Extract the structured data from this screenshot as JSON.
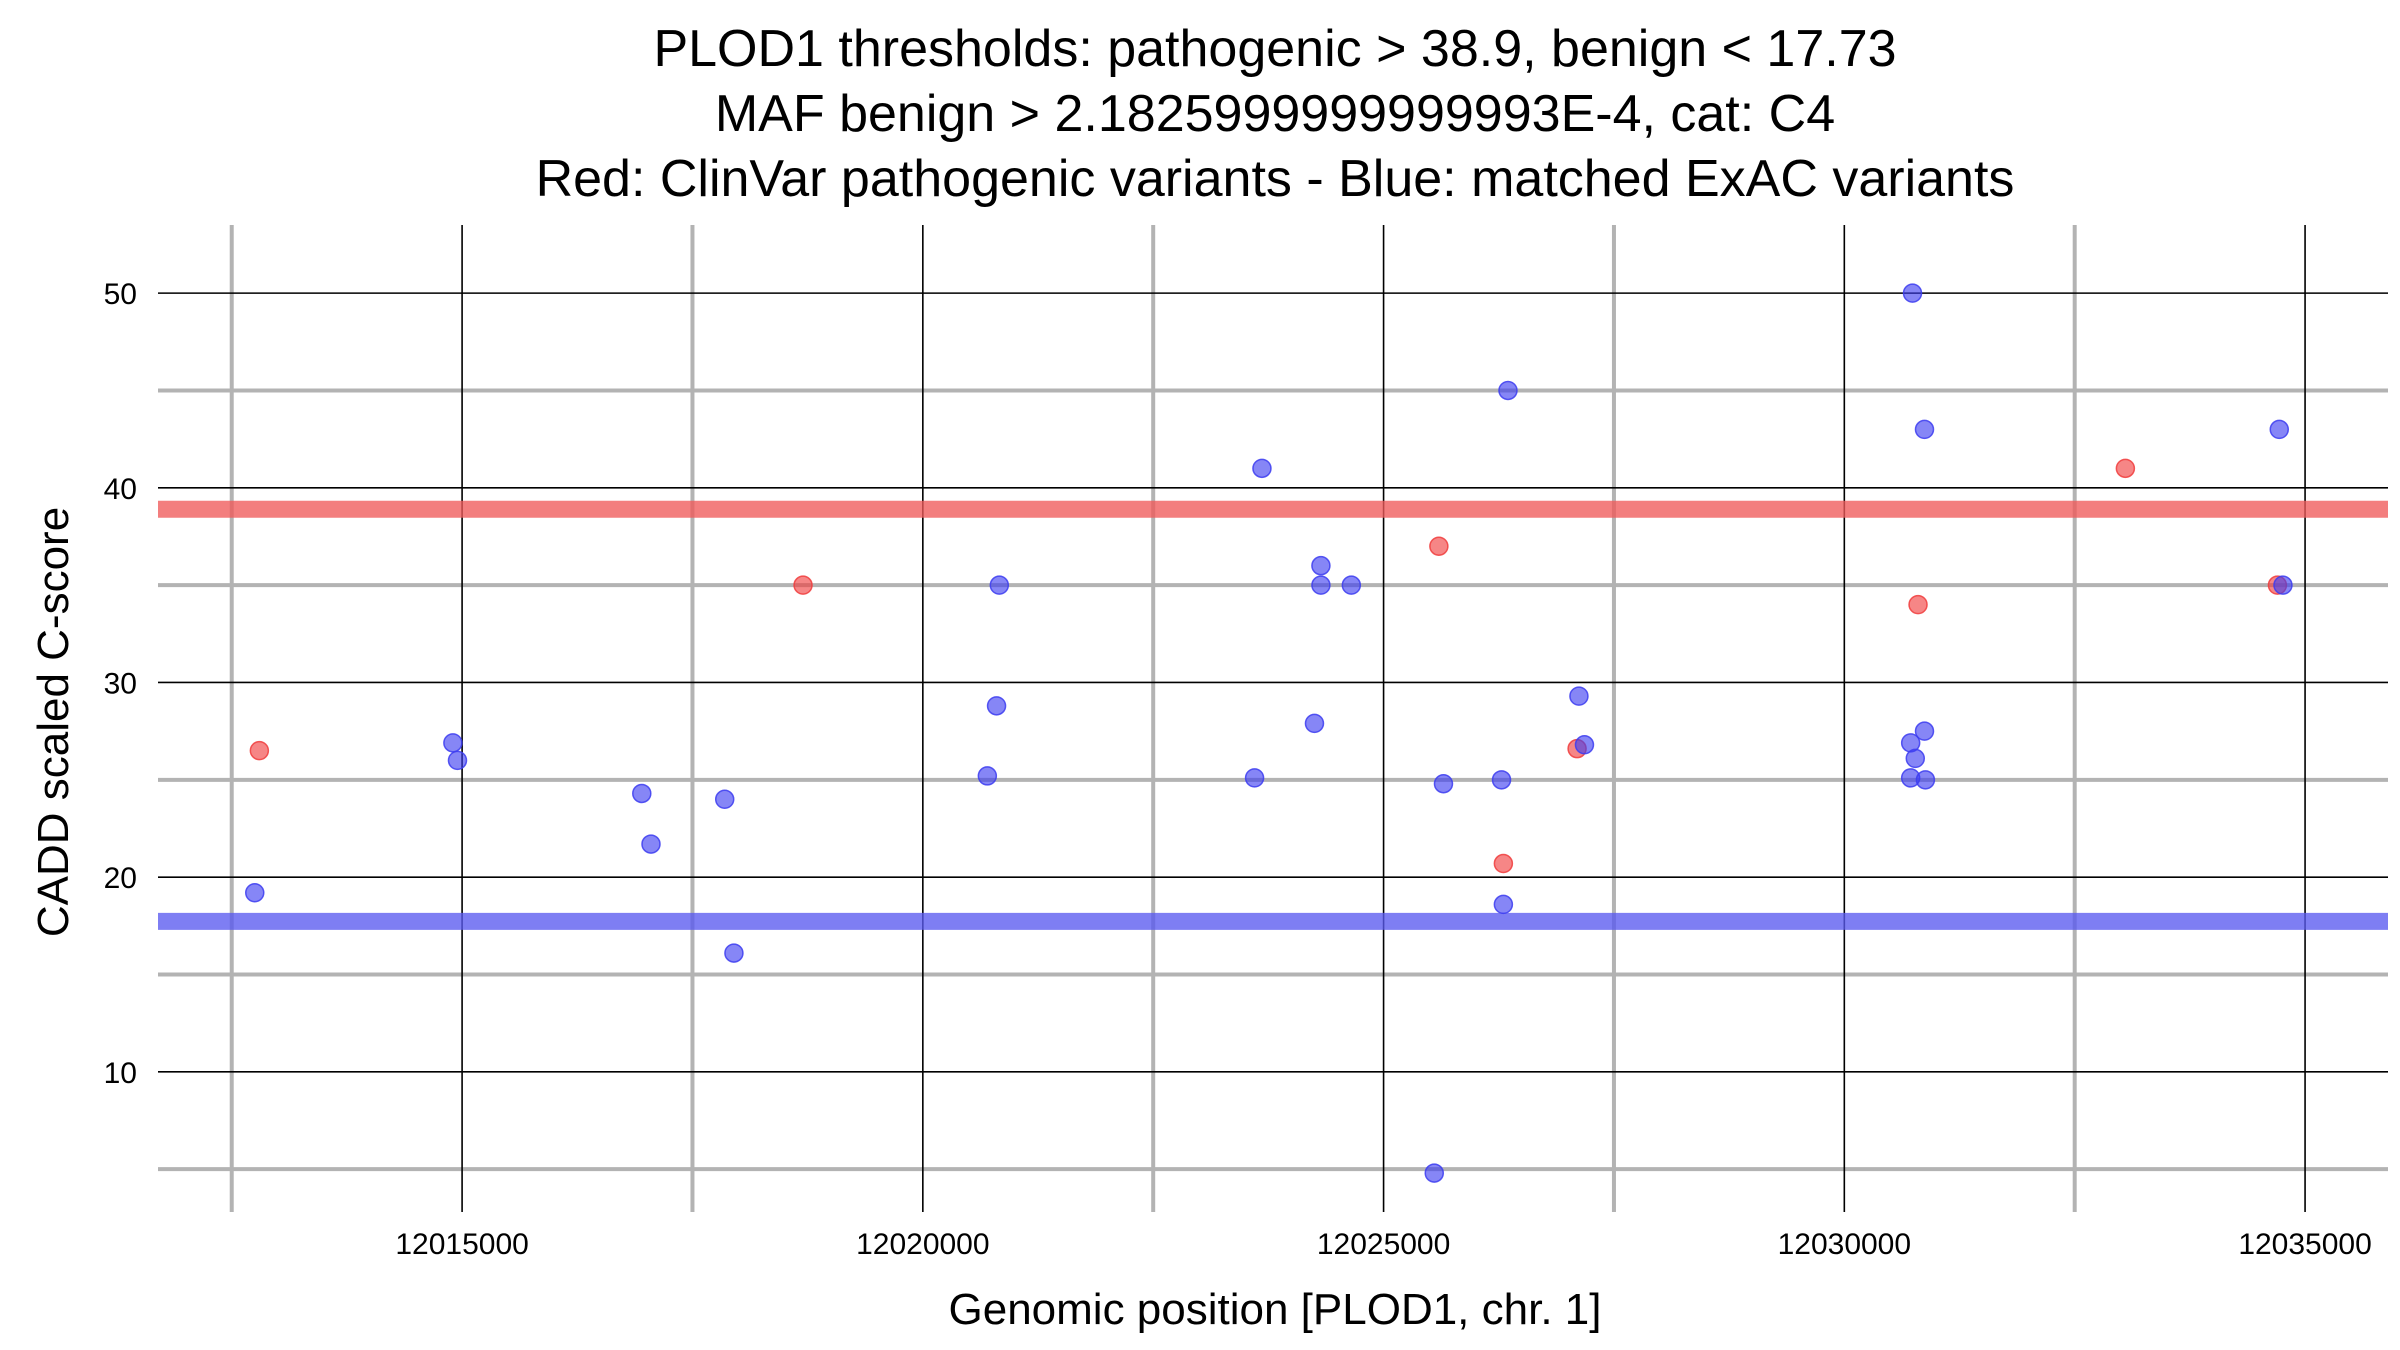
{
  "chart_data": {
    "type": "scatter",
    "title": [
      "PLOD1 thresholds: pathogenic > 38.9, benign < 17.73",
      "MAF benign > 2.1825999999999993E-4, cat: C4",
      "Red: ClinVar pathogenic variants - Blue: matched ExAC variants"
    ],
    "xlabel": "Genomic position [PLOD1, chr. 1]",
    "ylabel": "CADD scaled C-score",
    "xlim": [
      12011700,
      12035900
    ],
    "ylim": [
      2.8,
      53.5
    ],
    "x_major_ticks": [
      12015000,
      12020000,
      12025000,
      12030000,
      12035000
    ],
    "x_tick_labels": [
      "12015000",
      "12020000",
      "12025000",
      "12030000",
      "12035000"
    ],
    "x_minor_ticks": [
      12012500,
      12017500,
      12022500,
      12027500,
      12032500
    ],
    "y_major_ticks": [
      10,
      20,
      30,
      40,
      50
    ],
    "y_tick_labels": [
      "10",
      "20",
      "30",
      "40",
      "50"
    ],
    "y_minor_ticks": [
      5,
      15,
      25,
      35,
      45
    ],
    "thresholds": [
      {
        "name": "pathogenic",
        "value": 38.9,
        "color": "#f05a5a"
      },
      {
        "name": "benign",
        "value": 17.73,
        "color": "#5a5af0"
      }
    ],
    "colors": {
      "pathogenic": "#f03c3c",
      "exac": "#3c3cf0",
      "major_grid": "#000000",
      "minor_grid": "#b3b3b3"
    },
    "series": [
      {
        "name": "ClinVar pathogenic",
        "color": "#f03c3c",
        "points": [
          {
            "x": 12012800,
            "y": 26.5
          },
          {
            "x": 12018700,
            "y": 35
          },
          {
            "x": 12025600,
            "y": 37
          },
          {
            "x": 12026300,
            "y": 20.7
          },
          {
            "x": 12027100,
            "y": 26.6
          },
          {
            "x": 12030800,
            "y": 34
          },
          {
            "x": 12033050,
            "y": 41
          },
          {
            "x": 12034700,
            "y": 35
          }
        ]
      },
      {
        "name": "matched ExAC",
        "color": "#3c3cf0",
        "points": [
          {
            "x": 12012750,
            "y": 19.2
          },
          {
            "x": 12014900,
            "y": 26.9
          },
          {
            "x": 12014950,
            "y": 26
          },
          {
            "x": 12016950,
            "y": 24.3
          },
          {
            "x": 12017050,
            "y": 21.7
          },
          {
            "x": 12017850,
            "y": 24
          },
          {
            "x": 12017950,
            "y": 16.1
          },
          {
            "x": 12020700,
            "y": 25.2
          },
          {
            "x": 12020800,
            "y": 28.8
          },
          {
            "x": 12020830,
            "y": 35
          },
          {
            "x": 12023600,
            "y": 25.1
          },
          {
            "x": 12023680,
            "y": 41
          },
          {
            "x": 12024250,
            "y": 27.9
          },
          {
            "x": 12024320,
            "y": 36
          },
          {
            "x": 12024320,
            "y": 35
          },
          {
            "x": 12024650,
            "y": 35
          },
          {
            "x": 12025550,
            "y": 4.8
          },
          {
            "x": 12025650,
            "y": 24.8
          },
          {
            "x": 12026280,
            "y": 25
          },
          {
            "x": 12026300,
            "y": 18.6
          },
          {
            "x": 12026350,
            "y": 45
          },
          {
            "x": 12027120,
            "y": 29.3
          },
          {
            "x": 12027180,
            "y": 26.8
          },
          {
            "x": 12030720,
            "y": 26.9
          },
          {
            "x": 12030720,
            "y": 25.1
          },
          {
            "x": 12030740,
            "y": 50
          },
          {
            "x": 12030770,
            "y": 26.1
          },
          {
            "x": 12030870,
            "y": 43
          },
          {
            "x": 12030870,
            "y": 27.5
          },
          {
            "x": 12030880,
            "y": 25
          },
          {
            "x": 12034720,
            "y": 43
          },
          {
            "x": 12034760,
            "y": 35
          }
        ]
      }
    ]
  }
}
